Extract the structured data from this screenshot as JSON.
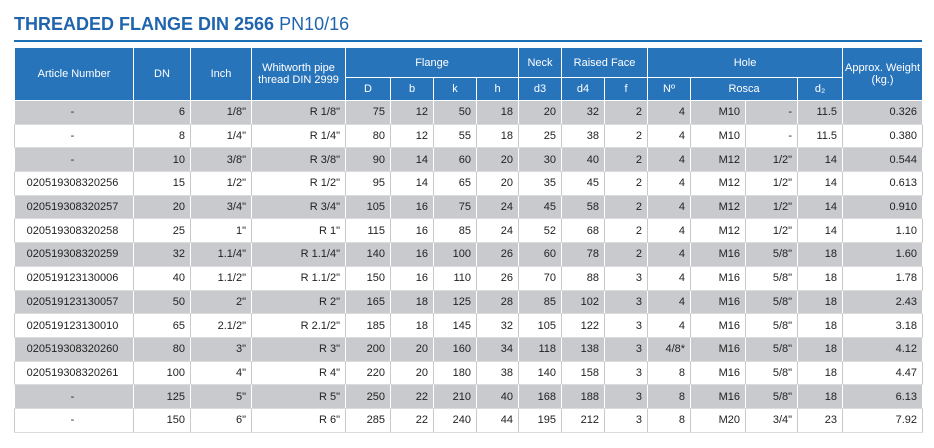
{
  "header": {
    "title": "THREADED FLANGE DIN 2566",
    "subtitle": "PN10/16"
  },
  "table": {
    "head": {
      "article": "Article Number",
      "dn": "DN",
      "inch": "Inch",
      "whitworth": "Whitworth pipe thread DIN 2999",
      "flange": "Flange",
      "neck": "Neck",
      "raised_face": "Raised Face",
      "hole": "Hole",
      "weight": "Approx. Weight (kg.)",
      "sub": [
        "D",
        "b",
        "k",
        "h",
        "d3",
        "d4",
        "f",
        "Nº",
        "Rosca",
        "d₂"
      ]
    },
    "rows": [
      [
        "-",
        "6",
        "1/8\"",
        "R 1/8\"",
        "75",
        "12",
        "50",
        "18",
        "20",
        "32",
        "2",
        "4",
        "M10",
        "-",
        "11.5",
        "0.326"
      ],
      [
        "-",
        "8",
        "1/4\"",
        "R 1/4\"",
        "80",
        "12",
        "55",
        "18",
        "25",
        "38",
        "2",
        "4",
        "M10",
        "-",
        "11.5",
        "0.380"
      ],
      [
        "-",
        "10",
        "3/8\"",
        "R 3/8\"",
        "90",
        "14",
        "60",
        "20",
        "30",
        "40",
        "2",
        "4",
        "M12",
        "1/2\"",
        "14",
        "0.544"
      ],
      [
        "020519308320256",
        "15",
        "1/2\"",
        "R 1/2\"",
        "95",
        "14",
        "65",
        "20",
        "35",
        "45",
        "2",
        "4",
        "M12",
        "1/2\"",
        "14",
        "0.613"
      ],
      [
        "020519308320257",
        "20",
        "3/4\"",
        "R 3/4\"",
        "105",
        "16",
        "75",
        "24",
        "45",
        "58",
        "2",
        "4",
        "M12",
        "1/2\"",
        "14",
        "0.910"
      ],
      [
        "020519308320258",
        "25",
        "1\"",
        "R 1\"",
        "115",
        "16",
        "85",
        "24",
        "52",
        "68",
        "2",
        "4",
        "M12",
        "1/2\"",
        "14",
        "1.10"
      ],
      [
        "020519308320259",
        "32",
        "1.1/4\"",
        "R 1.1/4\"",
        "140",
        "16",
        "100",
        "26",
        "60",
        "78",
        "2",
        "4",
        "M16",
        "5/8\"",
        "18",
        "1.60"
      ],
      [
        "020519123130006",
        "40",
        "1.1/2\"",
        "R 1.1/2\"",
        "150",
        "16",
        "110",
        "26",
        "70",
        "88",
        "3",
        "4",
        "M16",
        "5/8\"",
        "18",
        "1.78"
      ],
      [
        "020519123130057",
        "50",
        "2\"",
        "R 2\"",
        "165",
        "18",
        "125",
        "28",
        "85",
        "102",
        "3",
        "4",
        "M16",
        "5/8\"",
        "18",
        "2.43"
      ],
      [
        "020519123130010",
        "65",
        "2.1/2\"",
        "R 2.1/2\"",
        "185",
        "18",
        "145",
        "32",
        "105",
        "122",
        "3",
        "4",
        "M16",
        "5/8\"",
        "18",
        "3.18"
      ],
      [
        "020519308320260",
        "80",
        "3\"",
        "R 3\"",
        "200",
        "20",
        "160",
        "34",
        "118",
        "138",
        "3",
        "4/8*",
        "M16",
        "5/8\"",
        "18",
        "4.12"
      ],
      [
        "020519308320261",
        "100",
        "4\"",
        "R 4\"",
        "220",
        "20",
        "180",
        "38",
        "140",
        "158",
        "3",
        "8",
        "M16",
        "5/8\"",
        "18",
        "4.47"
      ],
      [
        "-",
        "125",
        "5\"",
        "R 5\"",
        "250",
        "22",
        "210",
        "40",
        "168",
        "188",
        "3",
        "8",
        "M16",
        "5/8\"",
        "18",
        "6.13"
      ],
      [
        "-",
        "150",
        "6\"",
        "R 6\"",
        "285",
        "22",
        "240",
        "44",
        "195",
        "212",
        "3",
        "8",
        "M20",
        "3/4\"",
        "23",
        "7.92"
      ]
    ]
  }
}
